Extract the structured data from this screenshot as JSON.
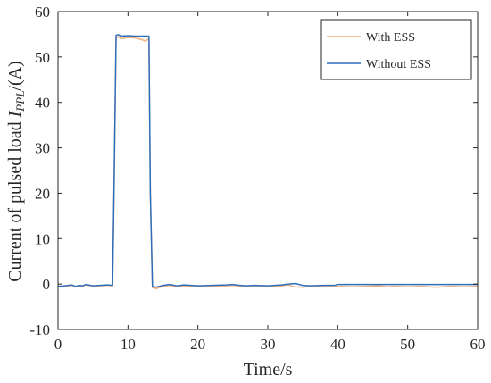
{
  "chart_data": {
    "type": "line",
    "xlabel": "Time/s",
    "ylabel_prefix": "Current of pulsed load ",
    "ylabel_var": "I",
    "ylabel_sub": "PPL",
    "ylabel_suffix": "/(A)",
    "xlim": [
      0,
      60
    ],
    "ylim": [
      -10,
      60
    ],
    "xticks": [
      0,
      10,
      20,
      30,
      40,
      50,
      60
    ],
    "yticks": [
      -10,
      0,
      10,
      20,
      30,
      40,
      50,
      60
    ],
    "grid": false,
    "legend_position": "top-right",
    "series": [
      {
        "name": "With ESS",
        "color": "#EDB17F",
        "x": [
          0,
          1,
          2,
          2.5,
          3,
          3.5,
          4,
          5,
          6,
          7,
          7.8,
          8.0,
          8.3,
          8.6,
          9,
          10,
          11,
          12,
          12.5,
          13.0,
          13.2,
          13.5,
          14,
          15,
          16,
          17,
          18,
          19,
          20,
          22,
          24,
          25,
          26,
          27,
          28,
          30,
          32,
          33,
          33.5,
          34,
          35,
          36,
          38,
          40,
          42,
          44,
          46,
          47,
          48,
          50,
          52,
          54,
          56,
          58,
          60
        ],
        "y": [
          -0.5,
          -0.5,
          -0.3,
          -0.6,
          -0.4,
          -0.5,
          -0.2,
          -0.5,
          -0.4,
          -0.3,
          -0.4,
          20,
          54.0,
          54.5,
          54.0,
          54.3,
          54.2,
          53.8,
          53.5,
          54.0,
          20,
          -0.8,
          -1.0,
          -0.5,
          -0.3,
          -0.6,
          -0.4,
          -0.5,
          -0.6,
          -0.5,
          -0.4,
          -0.3,
          -0.5,
          -0.6,
          -0.5,
          -0.6,
          -0.4,
          -0.2,
          -0.5,
          -0.6,
          -0.7,
          -0.5,
          -0.6,
          -0.5,
          -0.6,
          -0.5,
          -0.4,
          -0.6,
          -0.5,
          -0.6,
          -0.5,
          -0.7,
          -0.5,
          -0.6,
          -0.5
        ]
      },
      {
        "name": "Without ESS",
        "color": "#2F6EBA",
        "x": [
          0,
          1,
          2,
          2.5,
          3,
          3.5,
          4,
          5,
          6,
          7,
          7.8,
          8.0,
          8.3,
          8.6,
          9,
          10,
          11,
          12,
          12.5,
          13.0,
          13.2,
          13.5,
          14,
          15,
          16,
          17,
          18,
          19,
          20,
          22,
          24,
          25,
          26,
          27,
          28,
          30,
          32,
          33,
          34,
          35,
          36,
          38,
          39.5,
          40,
          42,
          44,
          46,
          48,
          50,
          52,
          54,
          56,
          58,
          60
        ],
        "y": [
          -0.5,
          -0.4,
          -0.2,
          -0.5,
          -0.3,
          -0.4,
          -0.1,
          -0.4,
          -0.3,
          -0.2,
          -0.3,
          20,
          54.8,
          54.9,
          54.6,
          54.7,
          54.6,
          54.6,
          54.6,
          54.6,
          20,
          -0.5,
          -0.7,
          -0.3,
          -0.1,
          -0.4,
          -0.2,
          -0.3,
          -0.4,
          -0.3,
          -0.2,
          -0.1,
          -0.3,
          -0.4,
          -0.3,
          -0.4,
          -0.2,
          0.0,
          0.1,
          -0.3,
          -0.4,
          -0.3,
          -0.3,
          -0.1,
          -0.1,
          -0.1,
          -0.1,
          -0.1,
          -0.1,
          -0.1,
          -0.1,
          -0.1,
          -0.1,
          -0.1
        ]
      }
    ]
  }
}
